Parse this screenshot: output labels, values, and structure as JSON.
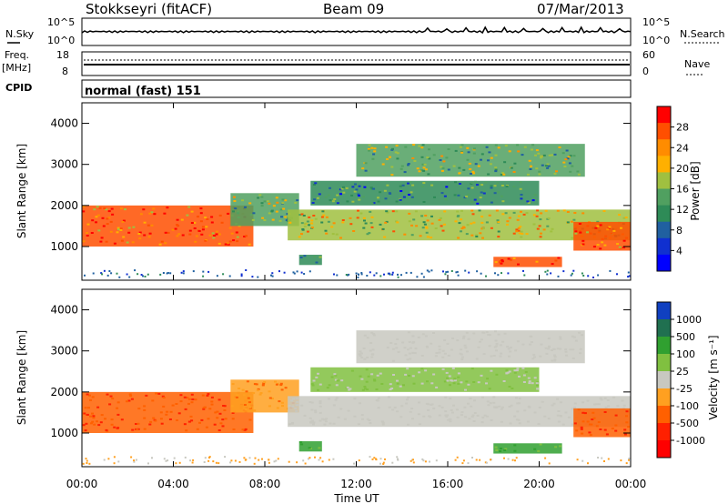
{
  "header": {
    "station": "Stokkseyri (fitACF)",
    "beam": "Beam 09",
    "date": "07/Mar/2013"
  },
  "strips": {
    "nsky_label": "N.Sky",
    "nsearch_label": "N.Search",
    "noise_ticks": [
      "10^5",
      "10^0"
    ],
    "freq_label_1": "Freq.",
    "freq_label_2": "[MHz]",
    "freq_ticks": [
      "18",
      "8"
    ],
    "nave_ticks": [
      "60",
      "0"
    ],
    "nave_label": "Nave",
    "cpid_label": "CPID",
    "cpid_value": "normal (fast) 151"
  },
  "axes": {
    "ylabel": "Slant Range [km]",
    "xlabel": "Time UT",
    "x_ticks": [
      "00:00",
      "04:00",
      "08:00",
      "12:00",
      "16:00",
      "20:00",
      "00:00"
    ],
    "y_ticks": [
      "1000",
      "2000",
      "3000",
      "4000"
    ]
  },
  "colorbars": {
    "power_label": "Power [dB]",
    "power_ticks": [
      "28",
      "24",
      "20",
      "16",
      "12",
      "8",
      "4"
    ],
    "power_colors": [
      "#ff0000",
      "#ff4f00",
      "#ff8c00",
      "#ffb000",
      "#a0c040",
      "#50a060",
      "#2e8b57",
      "#2060a0",
      "#1030d0",
      "#0000ff"
    ],
    "velocity_label": "Velocity [m s⁻¹]",
    "velocity_ticks": [
      "1000",
      "500",
      "100",
      "25",
      "-25",
      "-100",
      "-500",
      "-1000"
    ],
    "velocity_colors": [
      "#1040c0",
      "#207050",
      "#30a030",
      "#80c040",
      "#c8c8c0",
      "#ffa020",
      "#ff6000",
      "#ff2000",
      "#ff0000"
    ]
  },
  "chart_data": {
    "type": "heatmap",
    "x_range_hours": [
      0,
      24
    ],
    "y_range_km": [
      180,
      4500
    ],
    "power_range_db": [
      0,
      30
    ],
    "velocity_range_ms": [
      -1000,
      1000
    ],
    "regions": [
      {
        "t0": 0.0,
        "t1": 7.5,
        "r0": 1000,
        "r1": 2000,
        "power": 24,
        "velocity": -500
      },
      {
        "t0": 6.5,
        "t1": 9.5,
        "r0": 1500,
        "r1": 2300,
        "power": 14,
        "velocity": -100
      },
      {
        "t0": 9.0,
        "t1": 24.0,
        "r0": 1150,
        "r1": 1900,
        "power": 18,
        "velocity": 0
      },
      {
        "t0": 10.0,
        "t1": 20.0,
        "r0": 2000,
        "r1": 2600,
        "power": 10,
        "velocity": 25
      },
      {
        "t0": 12.0,
        "t1": 22.0,
        "r0": 2700,
        "r1": 3500,
        "power": 14,
        "velocity": 0
      },
      {
        "t0": 18.0,
        "t1": 21.0,
        "r0": 500,
        "r1": 750,
        "power": 26,
        "velocity": 100
      },
      {
        "t0": 21.5,
        "t1": 24.0,
        "r0": 900,
        "r1": 1600,
        "power": 24,
        "velocity": -500
      },
      {
        "t0": 9.5,
        "t1": 10.5,
        "r0": 550,
        "r1": 800,
        "power": 12,
        "velocity": 100
      }
    ]
  }
}
